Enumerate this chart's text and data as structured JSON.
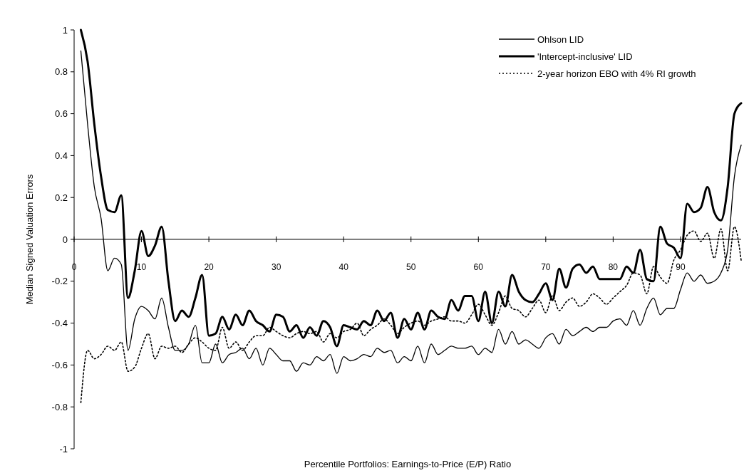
{
  "chart_data": {
    "type": "line",
    "xlabel": "Percentile Portfolios: Earnings-to-Price (E/P) Ratio",
    "ylabel": "Median Signed Valuation Errors",
    "x": [
      1,
      2,
      3,
      4,
      5,
      6,
      7,
      8,
      9,
      10,
      11,
      12,
      13,
      14,
      15,
      16,
      17,
      18,
      19,
      20,
      21,
      22,
      23,
      24,
      25,
      26,
      27,
      28,
      29,
      30,
      31,
      32,
      33,
      34,
      35,
      36,
      37,
      38,
      39,
      40,
      41,
      42,
      43,
      44,
      45,
      46,
      47,
      48,
      49,
      50,
      51,
      52,
      53,
      54,
      55,
      56,
      57,
      58,
      59,
      60,
      61,
      62,
      63,
      64,
      65,
      66,
      67,
      68,
      69,
      70,
      71,
      72,
      73,
      74,
      75,
      76,
      77,
      78,
      79,
      80,
      81,
      82,
      83,
      84,
      85,
      86,
      87,
      88,
      89,
      90,
      91,
      92,
      93,
      94,
      95,
      96,
      97,
      98,
      99
    ],
    "xlim": [
      0,
      99
    ],
    "xticks": [
      0,
      10,
      20,
      30,
      40,
      50,
      60,
      70,
      80,
      90
    ],
    "ylim": [
      -1,
      1
    ],
    "yticks": [
      -1,
      -0.8,
      -0.6,
      -0.4,
      -0.2,
      0,
      0.2,
      0.4,
      0.6,
      0.8,
      1
    ],
    "legend": "top right",
    "marker": "none",
    "series": [
      {
        "name": "Ohlson LID",
        "color": "#000000",
        "line_style": "solid",
        "values": [
          0.9,
          0.55,
          0.25,
          0.1,
          -0.15,
          -0.09,
          -0.12,
          -0.53,
          -0.38,
          -0.32,
          -0.34,
          -0.38,
          -0.28,
          -0.42,
          -0.53,
          -0.53,
          -0.5,
          -0.41,
          -0.59,
          -0.59,
          -0.5,
          -0.59,
          -0.55,
          -0.54,
          -0.52,
          -0.57,
          -0.52,
          -0.6,
          -0.52,
          -0.55,
          -0.58,
          -0.58,
          -0.63,
          -0.59,
          -0.6,
          -0.56,
          -0.58,
          -0.55,
          -0.64,
          -0.56,
          -0.58,
          -0.57,
          -0.55,
          -0.56,
          -0.52,
          -0.54,
          -0.53,
          -0.59,
          -0.56,
          -0.58,
          -0.51,
          -0.59,
          -0.5,
          -0.55,
          -0.53,
          -0.51,
          -0.52,
          -0.52,
          -0.51,
          -0.55,
          -0.52,
          -0.54,
          -0.43,
          -0.5,
          -0.44,
          -0.5,
          -0.48,
          -0.5,
          -0.52,
          -0.47,
          -0.45,
          -0.5,
          -0.43,
          -0.46,
          -0.44,
          -0.42,
          -0.44,
          -0.42,
          -0.42,
          -0.39,
          -0.38,
          -0.41,
          -0.34,
          -0.41,
          -0.33,
          -0.28,
          -0.36,
          -0.33,
          -0.33,
          -0.24,
          -0.16,
          -0.2,
          -0.17,
          -0.21,
          -0.2,
          -0.16,
          -0.05,
          0.3,
          0.45
        ]
      },
      {
        "name": "'Intercept-inclusive' LID",
        "color": "#000000",
        "line_style": "solid",
        "values": [
          1,
          0.85,
          0.55,
          0.3,
          0.14,
          0.13,
          0.21,
          -0.28,
          -0.15,
          0.04,
          -0.08,
          -0.03,
          0.06,
          -0.2,
          -0.39,
          -0.34,
          -0.37,
          -0.28,
          -0.17,
          -0.46,
          -0.45,
          -0.37,
          -0.43,
          -0.36,
          -0.41,
          -0.34,
          -0.39,
          -0.41,
          -0.44,
          -0.36,
          -0.37,
          -0.44,
          -0.41,
          -0.47,
          -0.42,
          -0.46,
          -0.39,
          -0.42,
          -0.51,
          -0.41,
          -0.42,
          -0.43,
          -0.39,
          -0.41,
          -0.34,
          -0.39,
          -0.35,
          -0.47,
          -0.38,
          -0.43,
          -0.35,
          -0.43,
          -0.34,
          -0.37,
          -0.38,
          -0.29,
          -0.34,
          -0.27,
          -0.27,
          -0.39,
          -0.25,
          -0.4,
          -0.25,
          -0.32,
          -0.17,
          -0.25,
          -0.29,
          -0.3,
          -0.26,
          -0.21,
          -0.29,
          -0.14,
          -0.23,
          -0.14,
          -0.12,
          -0.16,
          -0.13,
          -0.19,
          -0.19,
          -0.19,
          -0.19,
          -0.13,
          -0.16,
          -0.05,
          -0.19,
          -0.2,
          0.06,
          -0.02,
          -0.04,
          -0.09,
          0.17,
          0.13,
          0.15,
          0.25,
          0.13,
          0.09,
          0.25,
          0.6,
          0.65
        ]
      },
      {
        "name": "2-year horizon EBO with 4% RI growth",
        "color": "#000000",
        "line_style": "dotted",
        "values": [
          -0.78,
          -0.53,
          -0.57,
          -0.55,
          -0.51,
          -0.53,
          -0.49,
          -0.63,
          -0.61,
          -0.52,
          -0.45,
          -0.57,
          -0.51,
          -0.52,
          -0.51,
          -0.54,
          -0.5,
          -0.47,
          -0.49,
          -0.52,
          -0.53,
          -0.42,
          -0.52,
          -0.49,
          -0.53,
          -0.49,
          -0.46,
          -0.46,
          -0.42,
          -0.44,
          -0.46,
          -0.47,
          -0.45,
          -0.44,
          -0.45,
          -0.44,
          -0.49,
          -0.45,
          -0.47,
          -0.44,
          -0.43,
          -0.4,
          -0.46,
          -0.43,
          -0.41,
          -0.38,
          -0.41,
          -0.45,
          -0.42,
          -0.4,
          -0.39,
          -0.41,
          -0.39,
          -0.38,
          -0.37,
          -0.39,
          -0.39,
          -0.4,
          -0.36,
          -0.31,
          -0.36,
          -0.41,
          -0.35,
          -0.27,
          -0.33,
          -0.34,
          -0.37,
          -0.33,
          -0.29,
          -0.35,
          -0.27,
          -0.34,
          -0.3,
          -0.28,
          -0.32,
          -0.3,
          -0.26,
          -0.28,
          -0.31,
          -0.28,
          -0.25,
          -0.22,
          -0.16,
          -0.17,
          -0.26,
          -0.13,
          -0.18,
          -0.21,
          -0.1,
          -0.05,
          0.02,
          0.04,
          -0.01,
          0.03,
          -0.09,
          0.05,
          -0.15,
          0.06,
          -0.1
        ]
      }
    ]
  }
}
